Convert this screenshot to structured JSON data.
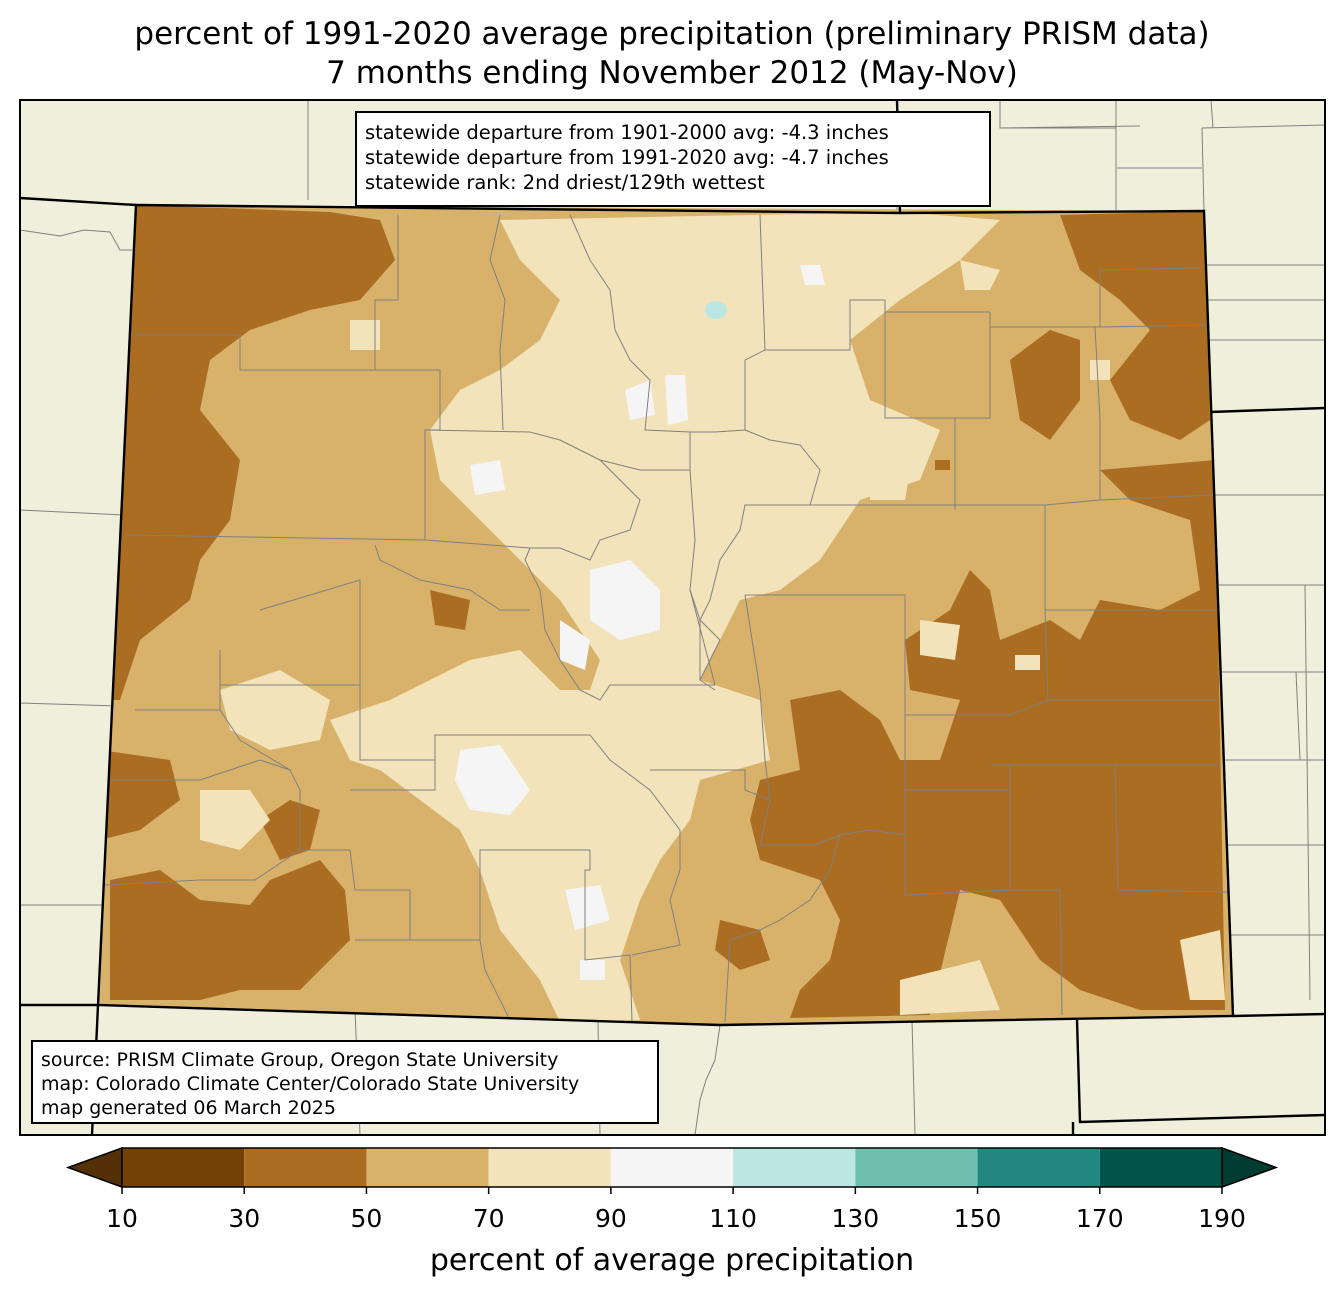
{
  "title": {
    "line1": "percent of 1991-2020 average precipitation (preliminary PRISM data)",
    "line2": "7 months ending November 2012 (May-Nov)"
  },
  "stats": {
    "line1": "statewide departure from 1901-2000 avg: -4.3 inches",
    "line2": "statewide departure from 1991-2020 avg: -4.7 inches",
    "line3": "statewide rank: 2nd driest/129th wettest"
  },
  "credits": {
    "line1": "source: PRISM Climate Group, Oregon State University",
    "line2": "map: Colorado Climate Center/Colorado State University",
    "line3": "map generated 06 March 2025"
  },
  "colorbar": {
    "label": "percent of average precipitation",
    "ticks": [
      "10",
      "30",
      "50",
      "70",
      "90",
      "110",
      "130",
      "150",
      "170",
      "190"
    ],
    "bins": [
      {
        "range": "10-30",
        "color": "#734005"
      },
      {
        "range": "30-50",
        "color": "#ab6d22"
      },
      {
        "range": "50-70",
        "color": "#d8b26b"
      },
      {
        "range": "70-90",
        "color": "#f3e3bb"
      },
      {
        "range": "90-110",
        "color": "#f4f5f4"
      },
      {
        "range": "110-130",
        "color": "#bce6e1"
      },
      {
        "range": "130-150",
        "color": "#6fc0b1"
      },
      {
        "range": "150-170",
        "color": "#22877e"
      },
      {
        "range": "170-190",
        "color": "#01544a"
      }
    ],
    "under_color": "#553006",
    "over_color": "#003c2f"
  },
  "colors": {
    "background_land": "#efefdb",
    "state_border": "#000000",
    "county_border": "#808080"
  }
}
